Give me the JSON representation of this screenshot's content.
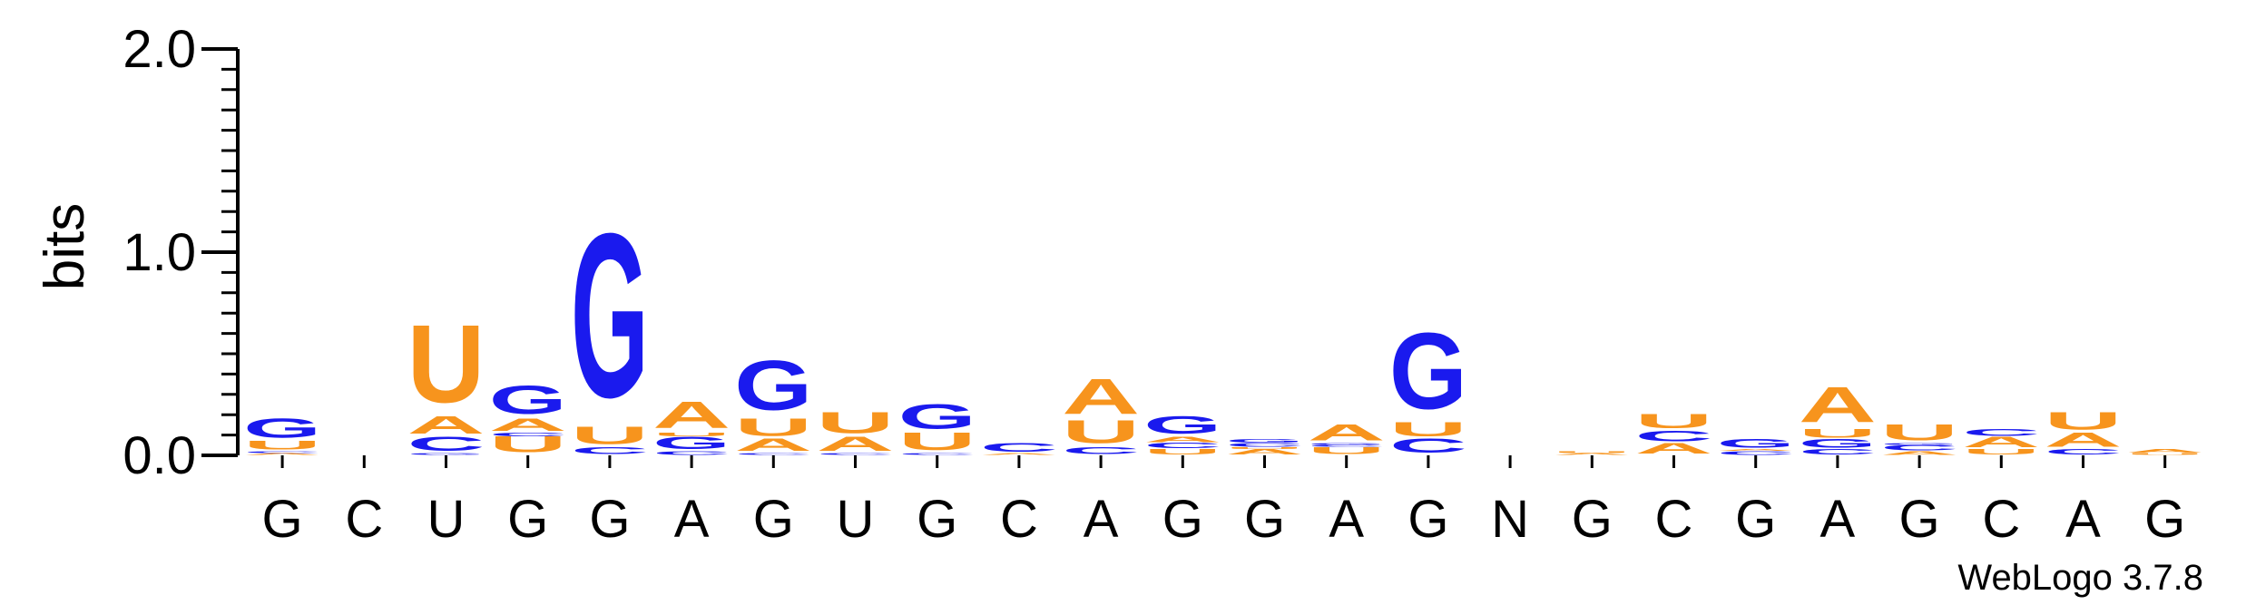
{
  "chart_data": {
    "type": "sequence-logo",
    "ylabel": "bits",
    "ylim": [
      0,
      2.0
    ],
    "yticks": [
      "0.0",
      "1.0",
      "2.0"
    ],
    "credit": "WebLogo 3.7.8",
    "colors": {
      "G": "#1a1aee",
      "C": "#1a1aee",
      "A": "#f7941d",
      "U": "#f7941d"
    },
    "positions": [
      {
        "label": "G",
        "stack": [
          {
            "letter": "A",
            "bits": 0.01
          },
          {
            "letter": "C",
            "bits": 0.01
          },
          {
            "letter": "U",
            "bits": 0.05
          },
          {
            "letter": "G",
            "bits": 0.11
          }
        ]
      },
      {
        "label": "C",
        "stack": []
      },
      {
        "label": "U",
        "stack": [
          {
            "letter": "G",
            "bits": 0.01
          },
          {
            "letter": "C",
            "bits": 0.08
          },
          {
            "letter": "A",
            "bits": 0.1
          },
          {
            "letter": "U",
            "bits": 0.44
          }
        ]
      },
      {
        "label": "G",
        "stack": [
          {
            "letter": "U",
            "bits": 0.09
          },
          {
            "letter": "C",
            "bits": 0.02
          },
          {
            "letter": "A",
            "bits": 0.07
          },
          {
            "letter": "G",
            "bits": 0.16
          }
        ]
      },
      {
        "label": "G",
        "stack": [
          {
            "letter": "C",
            "bits": 0.04
          },
          {
            "letter": "U",
            "bits": 0.1
          },
          {
            "letter": "G",
            "bits": 0.93
          }
        ]
      },
      {
        "label": "A",
        "stack": [
          {
            "letter": "C",
            "bits": 0.02
          },
          {
            "letter": "G",
            "bits": 0.07
          },
          {
            "letter": "U",
            "bits": 0.02
          },
          {
            "letter": "A",
            "bits": 0.15
          }
        ]
      },
      {
        "label": "G",
        "stack": [
          {
            "letter": "C",
            "bits": 0.01
          },
          {
            "letter": "A",
            "bits": 0.07
          },
          {
            "letter": "U",
            "bits": 0.1
          },
          {
            "letter": "G",
            "bits": 0.28
          }
        ]
      },
      {
        "label": "U",
        "stack": [
          {
            "letter": "C",
            "bits": 0.01
          },
          {
            "letter": "A",
            "bits": 0.08
          },
          {
            "letter": "U",
            "bits": 0.12
          }
        ]
      },
      {
        "label": "G",
        "stack": [
          {
            "letter": "C",
            "bits": 0.01
          },
          {
            "letter": "U",
            "bits": 0.1
          },
          {
            "letter": "G",
            "bits": 0.14
          }
        ]
      },
      {
        "label": "C",
        "stack": [
          {
            "letter": "A",
            "bits": 0.01
          },
          {
            "letter": "C",
            "bits": 0.05
          }
        ]
      },
      {
        "label": "A",
        "stack": [
          {
            "letter": "C",
            "bits": 0.04
          },
          {
            "letter": "U",
            "bits": 0.13
          },
          {
            "letter": "A",
            "bits": 0.2
          }
        ]
      },
      {
        "label": "G",
        "stack": [
          {
            "letter": "U",
            "bits": 0.03
          },
          {
            "letter": "C",
            "bits": 0.03
          },
          {
            "letter": "A",
            "bits": 0.03
          },
          {
            "letter": "G",
            "bits": 0.1
          }
        ]
      },
      {
        "label": "G",
        "stack": [
          {
            "letter": "A",
            "bits": 0.03
          },
          {
            "letter": "U",
            "bits": 0.01
          },
          {
            "letter": "C",
            "bits": 0.02
          },
          {
            "letter": "G",
            "bits": 0.02
          }
        ]
      },
      {
        "label": "A",
        "stack": [
          {
            "letter": "U",
            "bits": 0.04
          },
          {
            "letter": "C",
            "bits": 0.01
          },
          {
            "letter": "G",
            "bits": 0.01
          },
          {
            "letter": "A",
            "bits": 0.09
          }
        ]
      },
      {
        "label": "G",
        "stack": [
          {
            "letter": "C",
            "bits": 0.08
          },
          {
            "letter": "U",
            "bits": 0.08
          },
          {
            "letter": "G",
            "bits": 0.43
          }
        ]
      },
      {
        "label": "N",
        "stack": []
      },
      {
        "label": "G",
        "stack": [
          {
            "letter": "A",
            "bits": 0.01
          },
          {
            "letter": "U",
            "bits": 0.01
          }
        ]
      },
      {
        "label": "C",
        "stack": [
          {
            "letter": "A",
            "bits": 0.06
          },
          {
            "letter": "C",
            "bits": 0.06
          },
          {
            "letter": "U",
            "bits": 0.08
          }
        ]
      },
      {
        "label": "G",
        "stack": [
          {
            "letter": "C",
            "bits": 0.02
          },
          {
            "letter": "A",
            "bits": 0.01
          },
          {
            "letter": "G",
            "bits": 0.05
          }
        ]
      },
      {
        "label": "A",
        "stack": [
          {
            "letter": "C",
            "bits": 0.03
          },
          {
            "letter": "G",
            "bits": 0.05
          },
          {
            "letter": "U",
            "bits": 0.05
          },
          {
            "letter": "A",
            "bits": 0.2
          }
        ]
      },
      {
        "label": "G",
        "stack": [
          {
            "letter": "A",
            "bits": 0.02
          },
          {
            "letter": "C",
            "bits": 0.03
          },
          {
            "letter": "G",
            "bits": 0.01
          },
          {
            "letter": "U",
            "bits": 0.09
          }
        ]
      },
      {
        "label": "C",
        "stack": [
          {
            "letter": "U",
            "bits": 0.03
          },
          {
            "letter": "A",
            "bits": 0.06
          },
          {
            "letter": "C",
            "bits": 0.04
          }
        ]
      },
      {
        "label": "A",
        "stack": [
          {
            "letter": "C",
            "bits": 0.03
          },
          {
            "letter": "A",
            "bits": 0.08
          },
          {
            "letter": "U",
            "bits": 0.1
          }
        ]
      },
      {
        "label": "G",
        "stack": [
          {
            "letter": "U",
            "bits": 0.01
          },
          {
            "letter": "A",
            "bits": 0.02
          }
        ]
      }
    ]
  }
}
